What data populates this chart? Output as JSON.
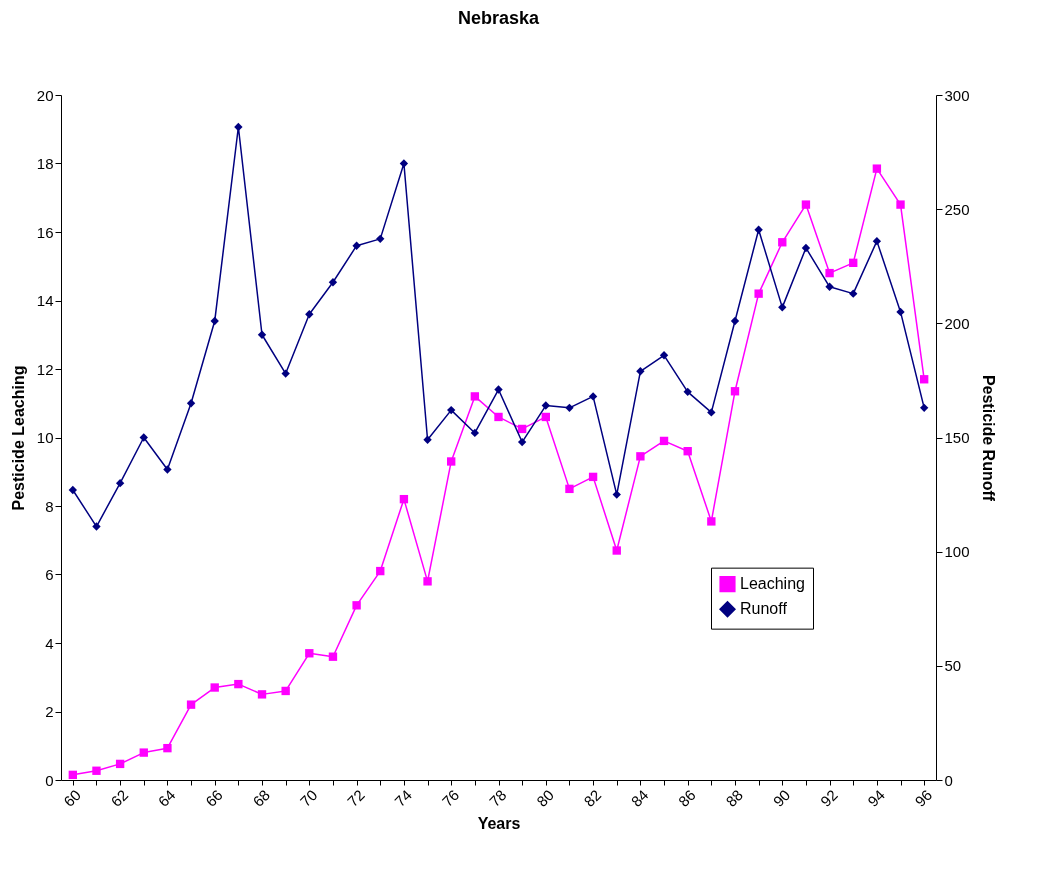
{
  "chart_data": {
    "type": "line",
    "title": "Nebraska",
    "xlabel": "Years",
    "ylabel": "Pesticide Leaching",
    "y2label": "Pesticide Runoff",
    "categories": [
      "60",
      null,
      "62",
      null,
      "64",
      null,
      "66",
      null,
      "68",
      null,
      "70",
      null,
      "72",
      null,
      "74",
      null,
      "76",
      null,
      "78",
      null,
      "80",
      null,
      "82",
      null,
      "84",
      null,
      "86",
      null,
      "88",
      null,
      "90",
      null,
      "92",
      null,
      "94",
      null,
      "96"
    ],
    "series": [
      {
        "name": "Leaching",
        "color": "#ff00ff",
        "marker": "square",
        "values": [
          0.15,
          0.27,
          0.47,
          0.8,
          0.93,
          2.2,
          2.7,
          2.8,
          2.5,
          2.6,
          3.7,
          3.6,
          5.1,
          6.1,
          8.2,
          5.8,
          9.3,
          11.2,
          10.6,
          10.25,
          10.6,
          8.5,
          8.85,
          6.7,
          9.45,
          9.9,
          9.6,
          7.55,
          11.35,
          14.2,
          15.7,
          16.8,
          14.8,
          15.1,
          17.85,
          16.8,
          11.7
        ]
      },
      {
        "name": "Runoff",
        "color": "#000080",
        "marker": "diamond",
        "axis": "y2",
        "values": [
          127,
          111,
          130,
          150,
          136,
          165,
          201,
          286,
          195,
          178,
          204,
          218,
          234,
          237,
          270,
          149,
          162,
          152,
          171,
          148,
          164,
          163,
          168,
          125,
          179,
          186,
          170,
          161,
          201,
          241,
          207,
          233,
          216,
          213,
          236,
          205,
          163
        ]
      }
    ],
    "ylim": [
      0,
      20
    ],
    "yticks": [
      0,
      2,
      4,
      6,
      8,
      10,
      12,
      14,
      16,
      18,
      20
    ],
    "y2lim": [
      0,
      300
    ],
    "y2ticks": [
      0,
      50,
      100,
      150,
      200,
      250,
      300
    ],
    "legend": "right",
    "grid": false,
    "line_style": "solid"
  }
}
